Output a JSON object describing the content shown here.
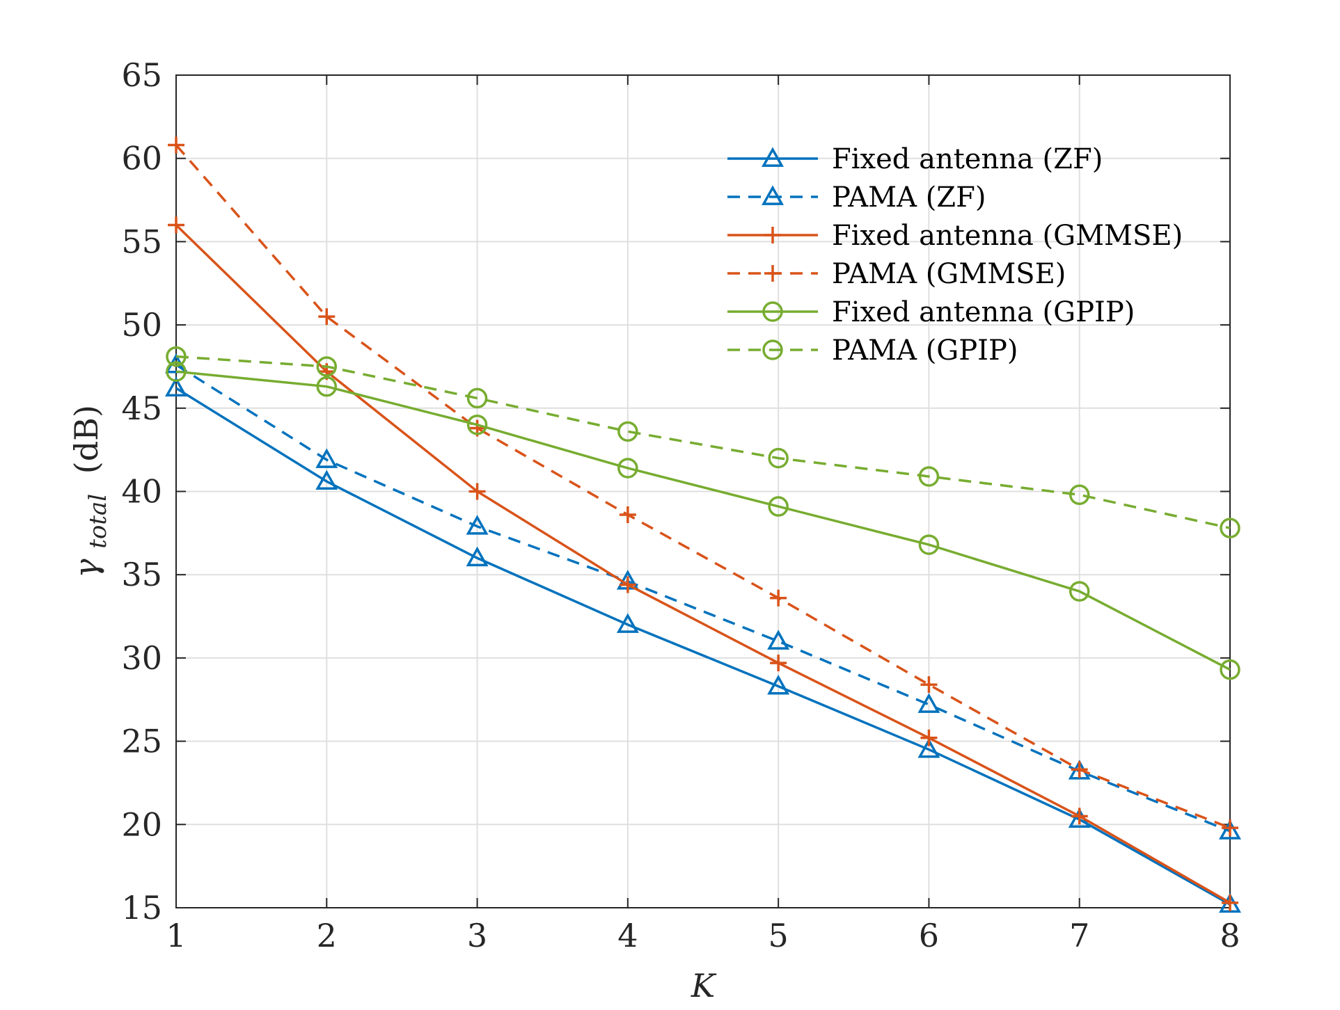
{
  "chart_data": {
    "type": "line",
    "xlabel": "K",
    "ylabel_symbol": "γ",
    "ylabel_subscript": "total",
    "ylabel_unit": "(dB)",
    "xlim": [
      1,
      8
    ],
    "ylim": [
      15,
      65
    ],
    "xticks": [
      1,
      2,
      3,
      4,
      5,
      6,
      7,
      8
    ],
    "yticks": [
      15,
      20,
      25,
      30,
      35,
      40,
      45,
      50,
      55,
      60,
      65
    ],
    "grid": true,
    "legend_position": "top-right",
    "x": [
      1,
      2,
      3,
      4,
      5,
      6,
      7,
      8
    ],
    "series": [
      {
        "name": "Fixed antenna (ZF)",
        "color": "#0072BD",
        "dash": "solid",
        "marker": "triangle",
        "values": [
          46.2,
          40.6,
          36.0,
          32.0,
          28.3,
          24.5,
          20.3,
          15.2
        ]
      },
      {
        "name": "PAMA (ZF)",
        "color": "#0072BD",
        "dash": "dashed",
        "marker": "triangle",
        "values": [
          47.6,
          41.9,
          37.9,
          34.6,
          31.0,
          27.2,
          23.2,
          19.6
        ]
      },
      {
        "name": "Fixed antenna (GMMSE)",
        "color": "#D95319",
        "dash": "solid",
        "marker": "plus",
        "values": [
          56.0,
          47.2,
          40.0,
          34.4,
          29.7,
          25.2,
          20.5,
          15.3
        ]
      },
      {
        "name": "PAMA (GMMSE)",
        "color": "#D95319",
        "dash": "dashed",
        "marker": "plus",
        "values": [
          60.8,
          50.5,
          43.8,
          38.6,
          33.6,
          28.4,
          23.3,
          19.8
        ]
      },
      {
        "name": "Fixed antenna (GPIP)",
        "color": "#77AC30",
        "dash": "solid",
        "marker": "circle",
        "values": [
          47.2,
          46.3,
          44.0,
          41.4,
          39.1,
          36.8,
          34.0,
          29.3
        ]
      },
      {
        "name": "PAMA (GPIP)",
        "color": "#77AC30",
        "dash": "dashed",
        "marker": "circle",
        "values": [
          48.1,
          47.5,
          45.6,
          43.6,
          42.0,
          40.9,
          39.8,
          37.8
        ]
      }
    ]
  }
}
